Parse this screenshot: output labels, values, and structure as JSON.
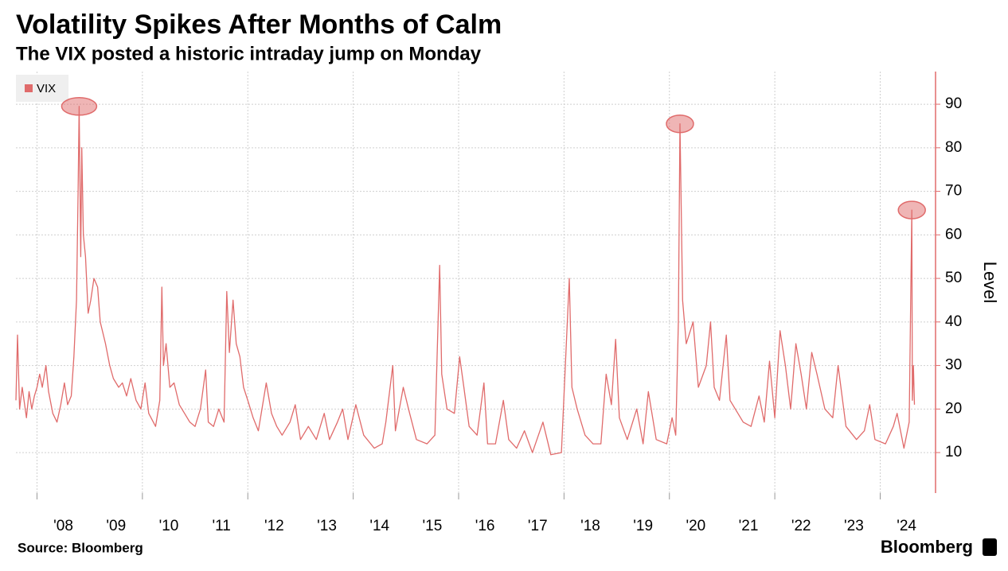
{
  "chart_data": {
    "type": "line",
    "title": "Volatility Spikes After Months of Calm",
    "subtitle": "The VIX posted a historic intraday jump on Monday",
    "y_axis_label": "Level",
    "source": "Source: Bloomberg",
    "brand": "Bloomberg",
    "legend": "top-left",
    "grid": true,
    "x": [
      2007.6,
      2007.63,
      2007.67,
      2007.72,
      2007.8,
      2007.85,
      2007.9,
      2007.95,
      2008.0,
      2008.05,
      2008.1,
      2008.17,
      2008.22,
      2008.3,
      2008.38,
      2008.45,
      2008.52,
      2008.58,
      2008.65,
      2008.7,
      2008.75,
      2008.78,
      2008.8,
      2008.83,
      2008.85,
      2008.88,
      2008.92,
      2008.97,
      2009.02,
      2009.08,
      2009.15,
      2009.2,
      2009.3,
      2009.38,
      2009.45,
      2009.55,
      2009.62,
      2009.7,
      2009.78,
      2009.88,
      2009.97,
      2010.05,
      2010.12,
      2010.25,
      2010.33,
      2010.37,
      2010.4,
      2010.45,
      2010.52,
      2010.6,
      2010.7,
      2010.8,
      2010.9,
      2011.0,
      2011.1,
      2011.2,
      2011.25,
      2011.35,
      2011.45,
      2011.55,
      2011.6,
      2011.65,
      2011.72,
      2011.78,
      2011.85,
      2011.92,
      2012.0,
      2012.1,
      2012.2,
      2012.35,
      2012.45,
      2012.55,
      2012.65,
      2012.8,
      2012.9,
      2013.0,
      2013.15,
      2013.3,
      2013.45,
      2013.55,
      2013.7,
      2013.8,
      2013.9,
      2014.05,
      2014.2,
      2014.4,
      2014.55,
      2014.62,
      2014.75,
      2014.8,
      2014.95,
      2015.05,
      2015.2,
      2015.4,
      2015.55,
      2015.64,
      2015.68,
      2015.78,
      2015.92,
      2016.02,
      2016.1,
      2016.2,
      2016.35,
      2016.48,
      2016.55,
      2016.7,
      2016.85,
      2016.95,
      2017.1,
      2017.25,
      2017.4,
      2017.6,
      2017.75,
      2017.95,
      2018.1,
      2018.15,
      2018.25,
      2018.4,
      2018.55,
      2018.7,
      2018.8,
      2018.9,
      2018.98,
      2019.05,
      2019.2,
      2019.38,
      2019.5,
      2019.6,
      2019.75,
      2019.95,
      2020.05,
      2020.12,
      2020.17,
      2020.2,
      2020.25,
      2020.32,
      2020.45,
      2020.55,
      2020.7,
      2020.78,
      2020.85,
      2020.95,
      2021.08,
      2021.15,
      2021.3,
      2021.4,
      2021.55,
      2021.7,
      2021.8,
      2021.9,
      2022.0,
      2022.1,
      2022.2,
      2022.3,
      2022.4,
      2022.5,
      2022.6,
      2022.7,
      2022.8,
      2022.95,
      2023.1,
      2023.2,
      2023.35,
      2023.55,
      2023.7,
      2023.8,
      2023.9,
      2024.1,
      2024.25,
      2024.32,
      2024.45,
      2024.55,
      2024.6,
      2024.61,
      2024.63,
      2024.65
    ],
    "series": [
      {
        "name": "VIX",
        "color": "#e06b6b",
        "values": [
          22,
          37,
          20,
          25,
          18,
          24,
          20,
          23,
          25,
          28,
          25,
          30,
          24,
          19,
          17,
          21,
          26,
          21,
          23,
          32,
          45,
          70,
          89.5,
          55,
          80,
          60,
          55,
          42,
          45,
          50,
          48,
          40,
          35,
          30,
          27,
          25,
          26,
          23,
          27,
          22,
          20,
          26,
          19,
          16,
          22,
          48,
          30,
          35,
          25,
          26,
          21,
          19,
          17,
          16,
          20,
          29,
          17,
          16,
          20,
          17,
          47,
          33,
          45,
          35,
          32,
          25,
          22,
          18,
          15,
          26,
          19,
          16,
          14,
          17,
          21,
          13,
          16,
          13,
          19,
          13,
          17,
          20,
          13,
          21,
          14,
          11,
          12,
          17,
          30,
          15,
          25,
          20,
          13,
          12,
          14,
          53,
          28,
          20,
          19,
          32,
          25,
          16,
          14,
          26,
          12,
          12,
          22,
          13,
          11,
          15,
          10,
          17,
          9.5,
          10,
          50,
          25,
          20,
          14,
          12,
          12,
          28,
          21,
          36,
          18,
          13,
          20,
          12,
          24,
          13,
          12,
          18,
          14,
          40,
          85.5,
          45,
          35,
          40,
          25,
          30,
          40,
          25,
          22,
          37,
          22,
          19,
          17,
          16,
          23,
          17,
          31,
          18,
          38,
          30,
          20,
          35,
          28,
          20,
          33,
          28,
          20,
          18,
          30,
          16,
          13,
          15,
          21,
          13,
          12,
          16,
          19,
          11,
          17,
          65.7,
          22,
          30,
          21
        ]
      }
    ],
    "highlights": [
      {
        "x": 2008.8,
        "y": 89.5
      },
      {
        "x": 2020.2,
        "y": 85.5
      },
      {
        "x": 2024.6,
        "y": 65.7
      }
    ],
    "xlim": [
      2007.6,
      2025.05
    ],
    "xticks": [
      {
        "value": 2008.5,
        "label": "'08"
      },
      {
        "value": 2009.5,
        "label": "'09"
      },
      {
        "value": 2010.5,
        "label": "'10"
      },
      {
        "value": 2011.5,
        "label": "'11"
      },
      {
        "value": 2012.5,
        "label": "'12"
      },
      {
        "value": 2013.5,
        "label": "'13"
      },
      {
        "value": 2014.5,
        "label": "'14"
      },
      {
        "value": 2015.5,
        "label": "'15"
      },
      {
        "value": 2016.5,
        "label": "'16"
      },
      {
        "value": 2017.5,
        "label": "'17"
      },
      {
        "value": 2018.5,
        "label": "'18"
      },
      {
        "value": 2019.5,
        "label": "'19"
      },
      {
        "value": 2020.5,
        "label": "'20"
      },
      {
        "value": 2021.5,
        "label": "'21"
      },
      {
        "value": 2022.5,
        "label": "'22"
      },
      {
        "value": 2023.5,
        "label": "'23"
      },
      {
        "value": 2024.5,
        "label": "'24"
      }
    ],
    "xgridlines": [
      2008,
      2010,
      2012,
      2014,
      2016,
      2018,
      2020,
      2022,
      2024
    ],
    "ylim": [
      0.7,
      97.5
    ],
    "yticks": [
      10,
      20,
      30,
      40,
      50,
      60,
      70,
      80,
      90
    ]
  }
}
